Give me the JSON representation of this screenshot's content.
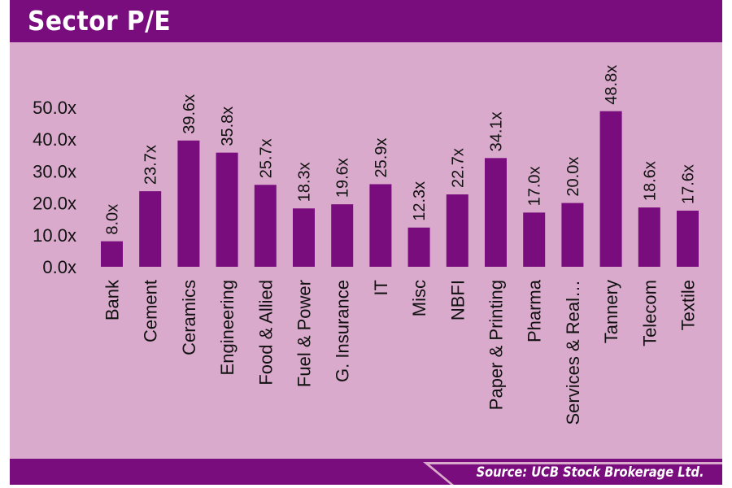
{
  "title": "Sector P/E",
  "source": "Source: UCB Stock Brokerage Ltd.",
  "colors": {
    "bar": "#7a0d7e",
    "panel": "#d9aacb",
    "header": "#7a0d7e"
  },
  "chart_data": {
    "type": "bar",
    "title": "Sector P/E",
    "xlabel": "",
    "ylabel": "",
    "ylim": [
      0,
      50
    ],
    "yticks": [
      "0.0x",
      "10.0x",
      "20.0x",
      "30.0x",
      "40.0x",
      "50.0x"
    ],
    "ytick_values": [
      0,
      10,
      20,
      30,
      40,
      50
    ],
    "grid": false,
    "categories": [
      "Bank",
      "Cement",
      "Ceramics",
      "Engineering",
      "Food & Allied",
      "Fuel & Power",
      "G. Insurance",
      "IT",
      "Misc",
      "NBFI",
      "Paper & Printing",
      "Pharma",
      "Services & Real…",
      "Tannery",
      "Telecom",
      "Textile"
    ],
    "values": [
      8.0,
      23.7,
      39.6,
      35.8,
      25.7,
      18.3,
      19.6,
      25.9,
      12.3,
      22.7,
      34.1,
      17.0,
      20.0,
      48.8,
      18.6,
      17.6
    ],
    "data_labels": [
      "8.0x",
      "23.7x",
      "39.6x",
      "35.8x",
      "25.7x",
      "18.3x",
      "19.6x",
      "25.9x",
      "12.3x",
      "22.7x",
      "34.1x",
      "17.0x",
      "20.0x",
      "48.8x",
      "18.6x",
      "17.6x"
    ]
  }
}
